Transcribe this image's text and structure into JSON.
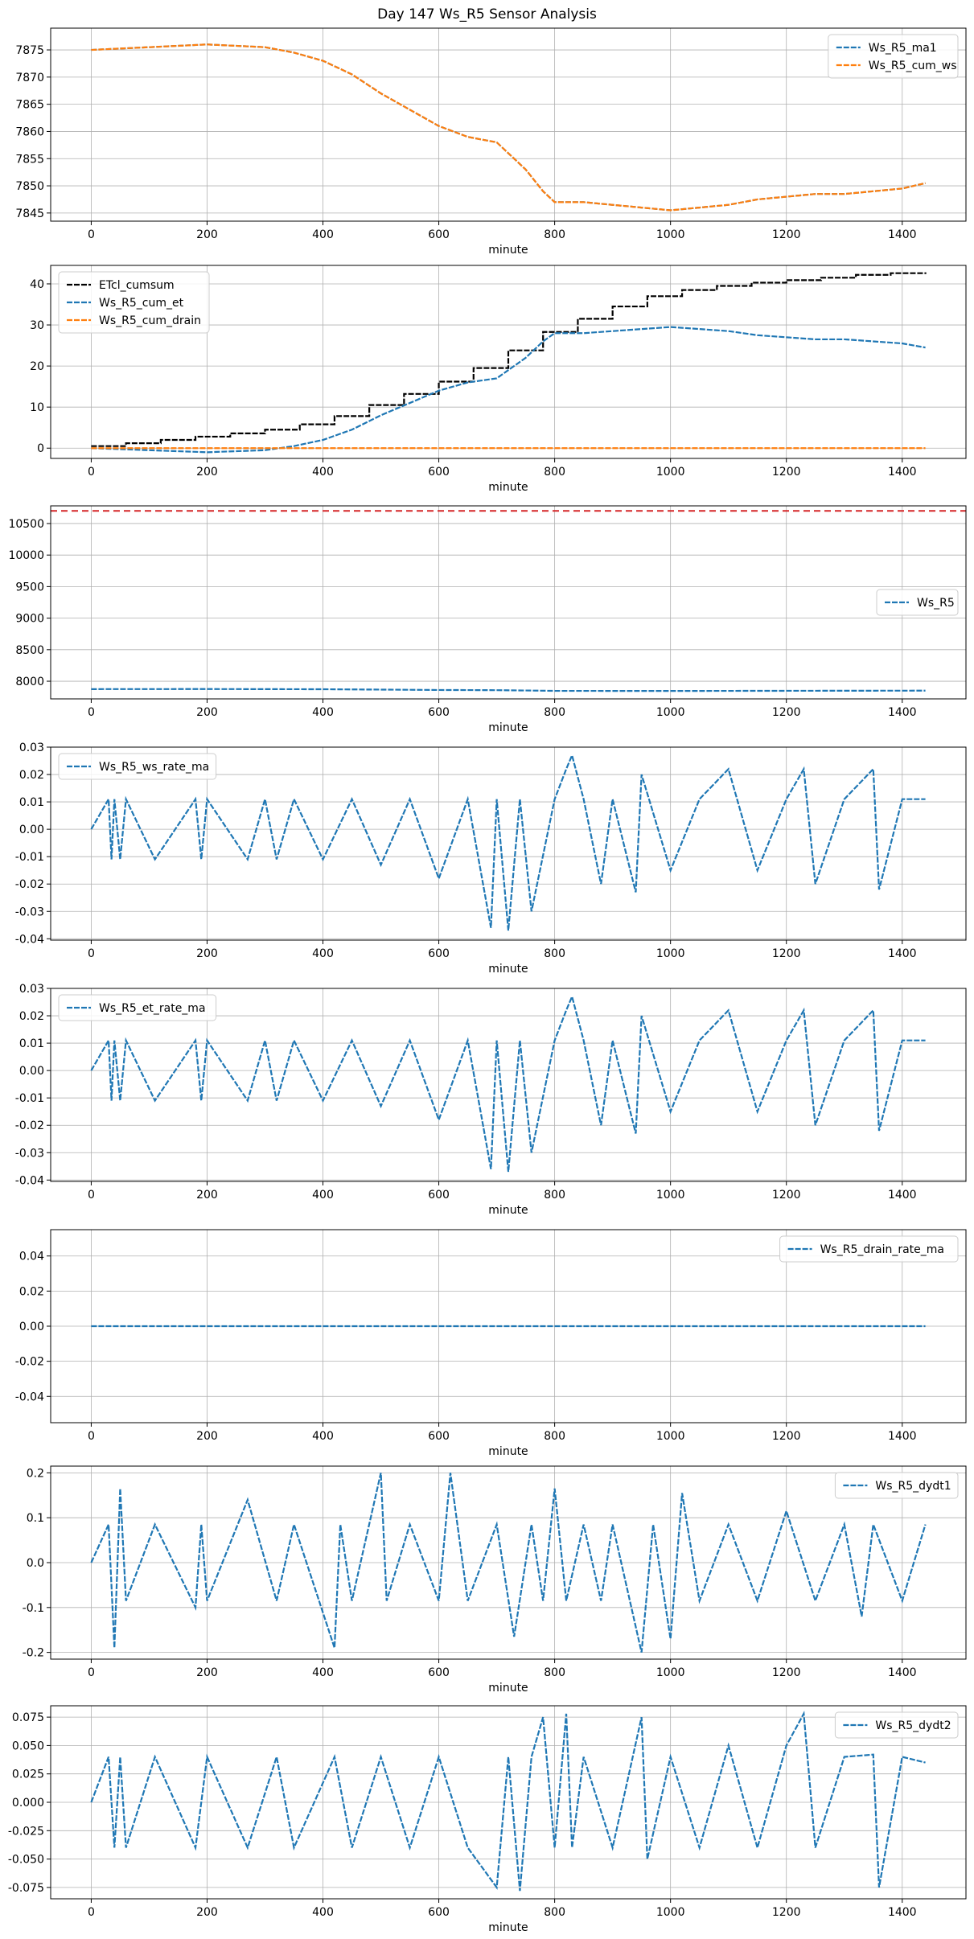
{
  "figure": {
    "title": "Day 147 Ws_R5 Sensor Analysis"
  },
  "colors": {
    "blue": "#1f77b4",
    "orange": "#ff7f0e",
    "black": "#000000",
    "red": "#d62728",
    "grid": "#b0b0b0"
  },
  "chart_data": [
    {
      "type": "line",
      "xlabel": "minute",
      "ylabel": "",
      "xlim": [
        -70,
        1510
      ],
      "ylim": [
        7843.5,
        7879
      ],
      "xticks": [
        0,
        200,
        400,
        600,
        800,
        1000,
        1200,
        1400
      ],
      "yticks": [
        7845,
        7850,
        7855,
        7860,
        7865,
        7870,
        7875
      ],
      "ytick_labels": [
        "7845",
        "7850",
        "7855",
        "7860",
        "7865",
        "7870",
        "7875"
      ],
      "grid": true,
      "legend": "top-right",
      "series": [
        {
          "name": "Ws_R5_ma1",
          "color": "#1f77b4",
          "style": "dashed",
          "x": [
            0,
            100,
            200,
            300,
            350,
            400,
            450,
            500,
            550,
            600,
            650,
            700,
            750,
            780,
            800,
            850,
            900,
            950,
            1000,
            1050,
            1100,
            1150,
            1200,
            1250,
            1300,
            1350,
            1400,
            1440
          ],
          "y": [
            7875,
            7875.5,
            7876,
            7875.5,
            7874.5,
            7873,
            7870.5,
            7867,
            7864,
            7861,
            7859,
            7858,
            7853,
            7849,
            7847,
            7847,
            7846.5,
            7846,
            7845.5,
            7846,
            7846.5,
            7847.5,
            7848,
            7848.5,
            7848.5,
            7849,
            7849.5,
            7850.5
          ]
        },
        {
          "name": "Ws_R5_cum_ws",
          "color": "#ff7f0e",
          "style": "dashed",
          "x": [
            0,
            100,
            200,
            300,
            350,
            400,
            450,
            500,
            550,
            600,
            650,
            700,
            750,
            780,
            800,
            850,
            900,
            950,
            1000,
            1050,
            1100,
            1150,
            1200,
            1250,
            1300,
            1350,
            1400,
            1440
          ],
          "y": [
            7875,
            7875.5,
            7876,
            7875.5,
            7874.5,
            7873,
            7870.5,
            7867,
            7864,
            7861,
            7859,
            7858,
            7853,
            7849,
            7847,
            7847,
            7846.5,
            7846,
            7845.5,
            7846,
            7846.5,
            7847.5,
            7848,
            7848.5,
            7848.5,
            7849,
            7849.5,
            7850.5
          ]
        }
      ]
    },
    {
      "type": "line",
      "xlabel": "minute",
      "ylabel": "",
      "xlim": [
        -70,
        1510
      ],
      "ylim": [
        -2.5,
        44.5
      ],
      "xticks": [
        0,
        200,
        400,
        600,
        800,
        1000,
        1200,
        1400
      ],
      "yticks": [
        0,
        10,
        20,
        30,
        40
      ],
      "ytick_labels": [
        "0",
        "10",
        "20",
        "30",
        "40"
      ],
      "grid": true,
      "legend": "top-left",
      "series": [
        {
          "name": "ETcl_cumsum",
          "color": "#000000",
          "style": "dashed",
          "step": true,
          "x": [
            0,
            60,
            120,
            180,
            240,
            300,
            360,
            420,
            480,
            540,
            600,
            660,
            720,
            780,
            840,
            900,
            960,
            1020,
            1080,
            1140,
            1200,
            1260,
            1320,
            1380,
            1440
          ],
          "y": [
            0.5,
            1.2,
            2.0,
            2.8,
            3.6,
            4.5,
            5.8,
            7.8,
            10.5,
            13.2,
            16.2,
            19.5,
            23.8,
            28.3,
            31.5,
            34.5,
            37.0,
            38.5,
            39.5,
            40.3,
            40.9,
            41.5,
            42.2,
            42.6,
            42.8
          ]
        },
        {
          "name": "Ws_R5_cum_et",
          "color": "#1f77b4",
          "style": "dashed",
          "x": [
            0,
            100,
            200,
            300,
            350,
            400,
            450,
            500,
            550,
            600,
            650,
            700,
            750,
            780,
            800,
            850,
            900,
            950,
            1000,
            1050,
            1100,
            1150,
            1200,
            1250,
            1300,
            1350,
            1400,
            1440
          ],
          "y": [
            0,
            -0.5,
            -1.0,
            -0.5,
            0.5,
            2.0,
            4.5,
            8.0,
            11.0,
            14.0,
            16.0,
            17.0,
            22.0,
            26.0,
            28.0,
            28.0,
            28.5,
            29.0,
            29.5,
            29.0,
            28.5,
            27.5,
            27.0,
            26.5,
            26.5,
            26.0,
            25.5,
            24.5
          ]
        },
        {
          "name": "Ws_R5_cum_drain",
          "color": "#ff7f0e",
          "style": "dashed",
          "x": [
            0,
            1440
          ],
          "y": [
            0,
            0
          ]
        }
      ]
    },
    {
      "type": "line",
      "xlabel": "minute",
      "ylabel": "",
      "xlim": [
        -70,
        1510
      ],
      "ylim": [
        7720,
        10780
      ],
      "xticks": [
        0,
        200,
        400,
        600,
        800,
        1000,
        1200,
        1400
      ],
      "yticks": [
        8000,
        8500,
        9000,
        9500,
        10000,
        10500
      ],
      "ytick_labels": [
        "8000",
        "8500",
        "9000",
        "9500",
        "10000",
        "10500"
      ],
      "grid": true,
      "legend": "center-right",
      "hline": {
        "y": 10700,
        "color": "#d62728",
        "style": "dashed"
      },
      "series": [
        {
          "name": "Ws_R5",
          "color": "#1f77b4",
          "style": "dashed",
          "x": [
            0,
            200,
            400,
            550,
            600,
            700,
            750,
            800,
            1000,
            1200,
            1440
          ],
          "y": [
            7875,
            7876,
            7873,
            7864,
            7861,
            7858,
            7853,
            7847,
            7845.5,
            7848,
            7850.5
          ]
        }
      ]
    },
    {
      "type": "line",
      "xlabel": "minute",
      "ylabel": "",
      "xlim": [
        -70,
        1510
      ],
      "ylim": [
        -0.0405,
        0.03
      ],
      "xticks": [
        0,
        200,
        400,
        600,
        800,
        1000,
        1200,
        1400
      ],
      "yticks": [
        -0.04,
        -0.03,
        -0.02,
        -0.01,
        0.0,
        0.01,
        0.02,
        0.03
      ],
      "ytick_labels": [
        "-0.04",
        "-0.03",
        "-0.02",
        "-0.01",
        "0.00",
        "0.01",
        "0.02",
        "0.03"
      ],
      "grid": true,
      "legend": "top-left",
      "series": [
        {
          "name": "Ws_R5_ws_rate_ma",
          "color": "#1f77b4",
          "style": "dashed",
          "x": [
            0,
            30,
            35,
            40,
            50,
            60,
            110,
            180,
            190,
            200,
            270,
            300,
            320,
            350,
            400,
            450,
            500,
            550,
            600,
            650,
            690,
            700,
            720,
            740,
            760,
            800,
            820,
            830,
            850,
            880,
            900,
            940,
            950,
            1000,
            1050,
            1100,
            1150,
            1200,
            1230,
            1250,
            1300,
            1350,
            1360,
            1400,
            1440
          ],
          "y": [
            0,
            0.011,
            -0.011,
            0.011,
            -0.011,
            0.011,
            -0.011,
            0.011,
            -0.011,
            0.011,
            -0.011,
            0.011,
            -0.011,
            0.011,
            -0.011,
            0.011,
            -0.013,
            0.011,
            -0.018,
            0.011,
            -0.036,
            0.011,
            -0.037,
            0.011,
            -0.03,
            0.011,
            0.022,
            0.027,
            0.011,
            -0.02,
            0.011,
            -0.023,
            0.02,
            -0.015,
            0.011,
            0.022,
            -0.015,
            0.011,
            0.022,
            -0.02,
            0.011,
            0.022,
            -0.022,
            0.011,
            0.011
          ]
        }
      ]
    },
    {
      "type": "line",
      "xlabel": "minute",
      "ylabel": "",
      "xlim": [
        -70,
        1510
      ],
      "ylim": [
        -0.0405,
        0.03
      ],
      "xticks": [
        0,
        200,
        400,
        600,
        800,
        1000,
        1200,
        1400
      ],
      "yticks": [
        -0.04,
        -0.03,
        -0.02,
        -0.01,
        0.0,
        0.01,
        0.02,
        0.03
      ],
      "ytick_labels": [
        "-0.04",
        "-0.03",
        "-0.02",
        "-0.01",
        "0.00",
        "0.01",
        "0.02",
        "0.03"
      ],
      "grid": true,
      "legend": "top-left",
      "series": [
        {
          "name": "Ws_R5_et_rate_ma",
          "color": "#1f77b4",
          "style": "dashed",
          "x": [
            0,
            30,
            35,
            40,
            50,
            60,
            110,
            180,
            190,
            200,
            270,
            300,
            320,
            350,
            400,
            450,
            500,
            550,
            600,
            650,
            690,
            700,
            720,
            740,
            760,
            800,
            820,
            830,
            850,
            880,
            900,
            940,
            950,
            1000,
            1050,
            1100,
            1150,
            1200,
            1230,
            1250,
            1300,
            1350,
            1360,
            1400,
            1440
          ],
          "y": [
            0,
            0.011,
            -0.011,
            0.011,
            -0.011,
            0.011,
            -0.011,
            0.011,
            -0.011,
            0.011,
            -0.011,
            0.011,
            -0.011,
            0.011,
            -0.011,
            0.011,
            -0.013,
            0.011,
            -0.018,
            0.011,
            -0.036,
            0.011,
            -0.037,
            0.011,
            -0.03,
            0.011,
            0.022,
            0.027,
            0.011,
            -0.02,
            0.011,
            -0.023,
            0.02,
            -0.015,
            0.011,
            0.022,
            -0.015,
            0.011,
            0.022,
            -0.02,
            0.011,
            0.022,
            -0.022,
            0.011,
            0.011
          ]
        }
      ]
    },
    {
      "type": "line",
      "xlabel": "minute",
      "ylabel": "",
      "xlim": [
        -70,
        1510
      ],
      "ylim": [
        -0.055,
        0.055
      ],
      "xticks": [
        0,
        200,
        400,
        600,
        800,
        1000,
        1200,
        1400
      ],
      "yticks": [
        -0.04,
        -0.02,
        0.0,
        0.02,
        0.04
      ],
      "ytick_labels": [
        "-0.04",
        "-0.02",
        "0.00",
        "0.02",
        "0.04"
      ],
      "grid": true,
      "legend": "top-right",
      "series": [
        {
          "name": "Ws_R5_drain_rate_ma",
          "color": "#1f77b4",
          "style": "dashed",
          "x": [
            0,
            1440
          ],
          "y": [
            0,
            0
          ]
        }
      ]
    },
    {
      "type": "line",
      "xlabel": "minute",
      "ylabel": "",
      "xlim": [
        -70,
        1510
      ],
      "ylim": [
        -0.215,
        0.215
      ],
      "xticks": [
        0,
        200,
        400,
        600,
        800,
        1000,
        1200,
        1400
      ],
      "yticks": [
        -0.2,
        -0.1,
        0.0,
        0.1,
        0.2
      ],
      "ytick_labels": [
        "-0.2",
        "-0.1",
        "0.0",
        "0.1",
        "0.2"
      ],
      "grid": true,
      "legend": "top-right",
      "series": [
        {
          "name": "Ws_R5_dydt1",
          "color": "#1f77b4",
          "style": "dashed",
          "x": [
            0,
            30,
            40,
            50,
            60,
            110,
            180,
            190,
            200,
            270,
            320,
            350,
            420,
            430,
            450,
            500,
            510,
            550,
            600,
            620,
            650,
            700,
            730,
            760,
            780,
            800,
            820,
            850,
            880,
            900,
            950,
            970,
            1000,
            1020,
            1050,
            1100,
            1150,
            1200,
            1250,
            1300,
            1330,
            1350,
            1400,
            1440
          ],
          "y": [
            0,
            0.085,
            -0.19,
            0.165,
            -0.085,
            0.085,
            -0.1,
            0.085,
            -0.085,
            0.14,
            -0.085,
            0.085,
            -0.19,
            0.085,
            -0.085,
            0.2,
            -0.085,
            0.085,
            -0.085,
            0.2,
            -0.085,
            0.085,
            -0.165,
            0.085,
            -0.085,
            0.165,
            -0.085,
            0.085,
            -0.085,
            0.085,
            -0.2,
            0.085,
            -0.17,
            0.155,
            -0.085,
            0.085,
            -0.085,
            0.115,
            -0.085,
            0.085,
            -0.12,
            0.085,
            -0.085,
            0.085
          ]
        }
      ]
    },
    {
      "type": "line",
      "xlabel": "minute",
      "ylabel": "",
      "xlim": [
        -70,
        1510
      ],
      "ylim": [
        -0.085,
        0.085
      ],
      "xticks": [
        0,
        200,
        400,
        600,
        800,
        1000,
        1200,
        1400
      ],
      "yticks": [
        -0.075,
        -0.05,
        -0.025,
        0.0,
        0.025,
        0.05,
        0.075
      ],
      "ytick_labels": [
        "-0.075",
        "-0.050",
        "-0.025",
        "0.000",
        "0.025",
        "0.050",
        "0.075"
      ],
      "grid": true,
      "legend": "top-right",
      "series": [
        {
          "name": "Ws_R5_dydt2",
          "color": "#1f77b4",
          "style": "dashed",
          "x": [
            0,
            30,
            40,
            50,
            60,
            110,
            180,
            200,
            270,
            320,
            350,
            420,
            450,
            500,
            550,
            600,
            650,
            700,
            720,
            740,
            760,
            780,
            800,
            820,
            830,
            850,
            900,
            950,
            960,
            1000,
            1050,
            1100,
            1150,
            1200,
            1230,
            1250,
            1300,
            1350,
            1360,
            1400,
            1440
          ],
          "y": [
            0,
            0.04,
            -0.04,
            0.04,
            -0.04,
            0.04,
            -0.04,
            0.04,
            -0.04,
            0.04,
            -0.04,
            0.04,
            -0.04,
            0.04,
            -0.04,
            0.04,
            -0.04,
            -0.075,
            0.04,
            -0.078,
            0.04,
            0.075,
            -0.04,
            0.078,
            -0.04,
            0.04,
            -0.04,
            0.075,
            -0.05,
            0.04,
            -0.04,
            0.05,
            -0.04,
            0.05,
            0.078,
            -0.04,
            0.04,
            0.042,
            -0.075,
            0.04,
            0.035
          ]
        }
      ]
    }
  ]
}
